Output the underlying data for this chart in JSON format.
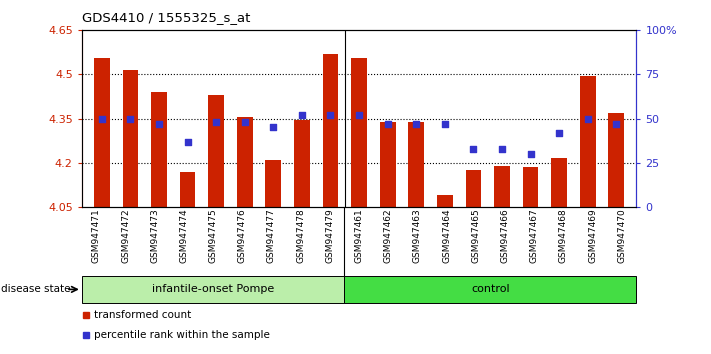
{
  "title": "GDS4410 / 1555325_s_at",
  "samples": [
    "GSM947471",
    "GSM947472",
    "GSM947473",
    "GSM947474",
    "GSM947475",
    "GSM947476",
    "GSM947477",
    "GSM947478",
    "GSM947479",
    "GSM947461",
    "GSM947462",
    "GSM947463",
    "GSM947464",
    "GSM947465",
    "GSM947466",
    "GSM947467",
    "GSM947468",
    "GSM947469",
    "GSM947470"
  ],
  "bar_values": [
    4.555,
    4.515,
    4.44,
    4.17,
    4.43,
    4.355,
    4.21,
    4.345,
    4.57,
    4.555,
    4.34,
    4.34,
    4.09,
    4.175,
    4.19,
    4.185,
    4.215,
    4.495,
    4.37
  ],
  "dot_values": [
    50,
    50,
    47,
    37,
    48,
    48,
    45,
    52,
    52,
    52,
    47,
    47,
    47,
    33,
    33,
    30,
    42,
    50,
    47
  ],
  "ylim_left": [
    4.05,
    4.65
  ],
  "ylim_right": [
    0,
    100
  ],
  "yticks_left": [
    4.05,
    4.2,
    4.35,
    4.5,
    4.65
  ],
  "yticks_right": [
    0,
    25,
    50,
    75,
    100
  ],
  "ytick_labels_left": [
    "4.05",
    "4.2",
    "4.35",
    "4.5",
    "4.65"
  ],
  "ytick_labels_right": [
    "0",
    "25",
    "50",
    "75",
    "100%"
  ],
  "hlines": [
    4.2,
    4.35,
    4.5
  ],
  "bar_color": "#cc2200",
  "dot_color": "#3333cc",
  "bar_bottom": 4.05,
  "group1_label": "infantile-onset Pompe",
  "group2_label": "control",
  "group1_count": 9,
  "group2_count": 10,
  "group1_bg": "#bbeeaa",
  "group2_bg": "#44dd44",
  "disease_state_label": "disease state",
  "legend1_label": "transformed count",
  "legend2_label": "percentile rank within the sample",
  "xlabel_bg": "#cccccc",
  "bg_color": "#ffffff"
}
